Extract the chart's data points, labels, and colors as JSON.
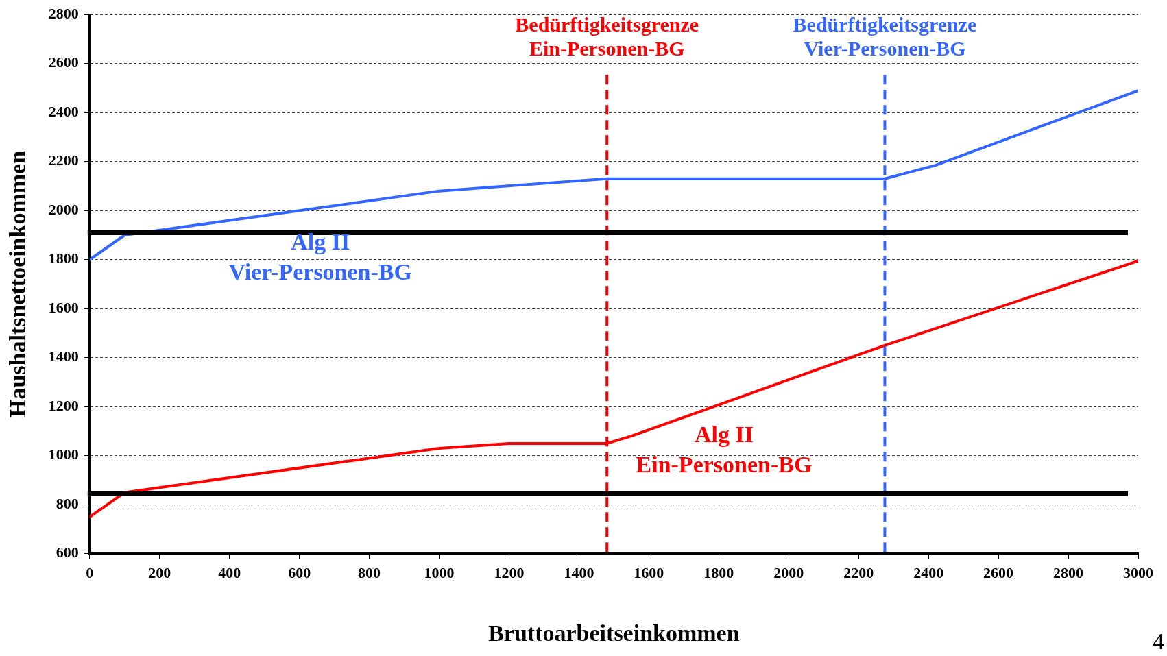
{
  "chart_data": {
    "type": "line",
    "xlabel": "Bruttoarbeitseinkommen",
    "ylabel": "Haushaltsnettoeinkommen",
    "xlim": [
      0,
      3000
    ],
    "xticks": [
      0,
      200,
      400,
      600,
      800,
      1000,
      1200,
      1400,
      1600,
      1800,
      2000,
      2200,
      2400,
      2600,
      2800,
      3000
    ],
    "ylim": [
      600,
      2800
    ],
    "yticks": [
      600,
      800,
      1000,
      1200,
      1400,
      1600,
      1800,
      2000,
      2200,
      2400,
      2600,
      2800
    ],
    "grid": "y",
    "legend": false,
    "marker": "none",
    "line_style": "solid",
    "series": [
      {
        "color": "#3366ff",
        "x": [
          0,
          100,
          1000,
          1480,
          2275,
          2420,
          3000
        ],
        "values": [
          1800,
          1900,
          2080,
          2130,
          2130,
          2185,
          2490
        ]
      },
      {
        "color": "#ff0000",
        "x": [
          0,
          100,
          1000,
          1200,
          1480,
          1550,
          2275,
          3000
        ],
        "values": [
          750,
          850,
          1030,
          1050,
          1050,
          1080,
          1450,
          1795
        ]
      }
    ],
    "ref_lines": [
      {
        "axis": "x",
        "value": 1480,
        "label": "Bedürftigkeitsgrenze\nEin-Personen-BG",
        "color": "#ff0000",
        "line_style": "dashed"
      },
      {
        "axis": "x",
        "value": 2275,
        "label": "Bedürftigkeitsgrenze\nVier-Personen-BG",
        "color": "#3366ff",
        "line_style": "dashed"
      },
      {
        "axis": "y",
        "value": 1910,
        "color": "#000000",
        "line_style": "solid"
      },
      {
        "axis": "y",
        "value": 845,
        "color": "#000000",
        "line_style": "solid"
      }
    ],
    "annotations": [
      "Alg II\nVier-Personen-BG",
      "Alg II\nEin-Personen-BG",
      "4"
    ]
  }
}
